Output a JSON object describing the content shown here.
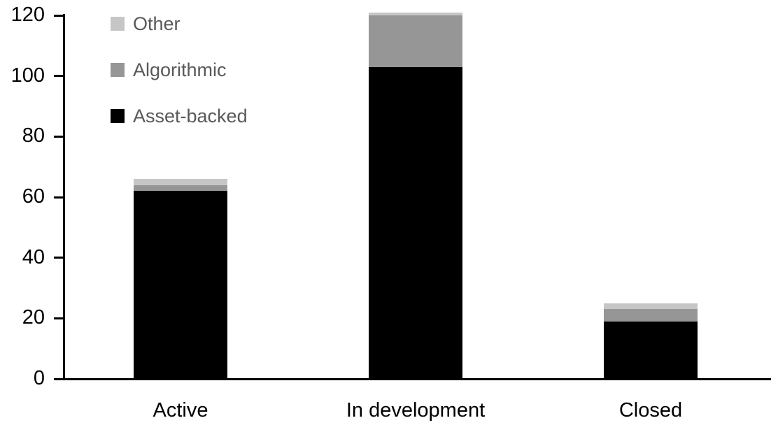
{
  "chart_data": {
    "type": "bar",
    "stacked": true,
    "categories": [
      "Active",
      "In development",
      "Closed"
    ],
    "series": [
      {
        "name": "Asset-backed",
        "color": "#000000",
        "values": [
          62,
          103,
          19
        ]
      },
      {
        "name": "Algorithmic",
        "color": "#969696",
        "values": [
          2,
          17,
          4
        ]
      },
      {
        "name": "Other",
        "color": "#c6c6c6",
        "values": [
          2,
          1,
          2
        ]
      }
    ],
    "totals": [
      66,
      121,
      25
    ],
    "ylim": [
      0,
      120
    ],
    "yticks": [
      0,
      20,
      40,
      60,
      80,
      100,
      120
    ],
    "grid": false,
    "legend": {
      "position": "top-left",
      "order_top_to_bottom": [
        "Other",
        "Algorithmic",
        "Asset-backed"
      ],
      "text_color": "#595959"
    },
    "axis_color": "#000000"
  }
}
